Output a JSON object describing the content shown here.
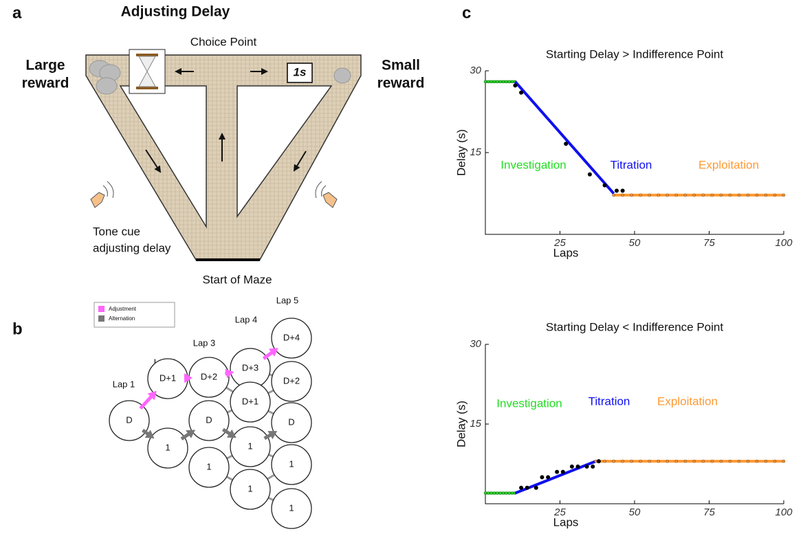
{
  "panel_a": {
    "label": "a",
    "title": "Adjusting Delay",
    "choice_point": "Choice Point",
    "large_reward": [
      "Large",
      "reward"
    ],
    "small_reward": [
      "Small",
      "reward"
    ],
    "delay_box": "1s",
    "tone_cue": [
      "Tone cue",
      "adjusting delay"
    ],
    "start": "Start of Maze"
  },
  "panel_b": {
    "label": "b",
    "legend": [
      {
        "name": "Adjustment",
        "color": "#ff66ff"
      },
      {
        "name": "Alternation",
        "color": "#777777"
      }
    ],
    "laps": [
      "Lap 1",
      "Lap 2",
      "Lap 3",
      "Lap 4",
      "Lap 5"
    ],
    "nodes": [
      "D",
      "D+1",
      "1",
      "D+2",
      "D",
      "1",
      "D+3",
      "D+1",
      "1",
      "1",
      "D+4",
      "D+2",
      "D",
      "1",
      "1"
    ]
  },
  "panel_c": {
    "label": "c"
  },
  "chart_data": [
    {
      "type": "line",
      "title": "Starting Delay > Indifference Point",
      "x_label": "Laps",
      "y_label": "Delay (s)",
      "xlim": [
        0,
        100
      ],
      "ylim": [
        0,
        30
      ],
      "xticks": [
        25,
        50,
        75,
        100
      ],
      "yticks": [
        15,
        30
      ],
      "series": [
        {
          "name": "Investigation",
          "color": "#22dd22",
          "x": [
            0,
            1,
            2,
            3,
            4,
            5,
            6,
            7,
            8,
            9,
            10
          ],
          "values": [
            28,
            28,
            28,
            28,
            28,
            28,
            28,
            28,
            28,
            28,
            28
          ]
        },
        {
          "name": "Titration",
          "color": "#1010ee",
          "x": [
            10,
            43
          ],
          "values": [
            28,
            7.5
          ]
        },
        {
          "name": "Exploitation",
          "color": "#ff9933",
          "x": [
            43,
            46,
            49,
            52,
            55,
            58,
            61,
            64,
            67,
            70,
            73,
            76,
            79,
            82,
            85,
            88,
            91,
            94,
            97,
            100
          ],
          "values": [
            7.2,
            7.2,
            7.2,
            7.2,
            7.2,
            7.2,
            7.2,
            7.2,
            7.2,
            7.2,
            7.2,
            7.2,
            7.2,
            7.2,
            7.2,
            7.2,
            7.2,
            7.2,
            7.2,
            7.2
          ]
        }
      ],
      "points": {
        "color": "#000000",
        "x": [
          10,
          12,
          27,
          35,
          40,
          44,
          46
        ],
        "values": [
          27.3,
          26,
          16.6,
          11,
          9,
          8,
          8
        ]
      }
    },
    {
      "type": "line",
      "title": "Starting Delay < Indifference Point",
      "x_label": "Laps",
      "y_label": "Delay (s)",
      "xlim": [
        0,
        100
      ],
      "ylim": [
        0,
        30
      ],
      "xticks": [
        25,
        50,
        75,
        100
      ],
      "yticks": [
        15,
        30
      ],
      "series": [
        {
          "name": "Investigation",
          "color": "#22dd22",
          "x": [
            0,
            1,
            2,
            3,
            4,
            5,
            6,
            7,
            8,
            9,
            10
          ],
          "values": [
            2,
            2,
            2,
            2,
            2,
            2,
            2,
            2,
            2,
            2,
            2
          ]
        },
        {
          "name": "Titration",
          "color": "#1010ee",
          "x": [
            10,
            37
          ],
          "values": [
            2,
            8
          ]
        },
        {
          "name": "Exploitation",
          "color": "#ff9933",
          "x": [
            37,
            40,
            43,
            46,
            49,
            52,
            55,
            58,
            61,
            64,
            67,
            70,
            73,
            76,
            79,
            82,
            85,
            88,
            91,
            94,
            97,
            100
          ],
          "values": [
            8,
            8,
            8,
            8,
            8,
            8,
            8,
            8,
            8,
            8,
            8,
            8,
            8,
            8,
            8,
            8,
            8,
            8,
            8,
            8,
            8,
            8
          ]
        }
      ],
      "points": {
        "color": "#000000",
        "x": [
          12,
          14,
          17,
          19,
          21,
          24,
          26,
          29,
          31,
          34,
          36,
          38
        ],
        "values": [
          3,
          3,
          3,
          5,
          5,
          6,
          6,
          7,
          7,
          7,
          7,
          8
        ]
      }
    }
  ]
}
